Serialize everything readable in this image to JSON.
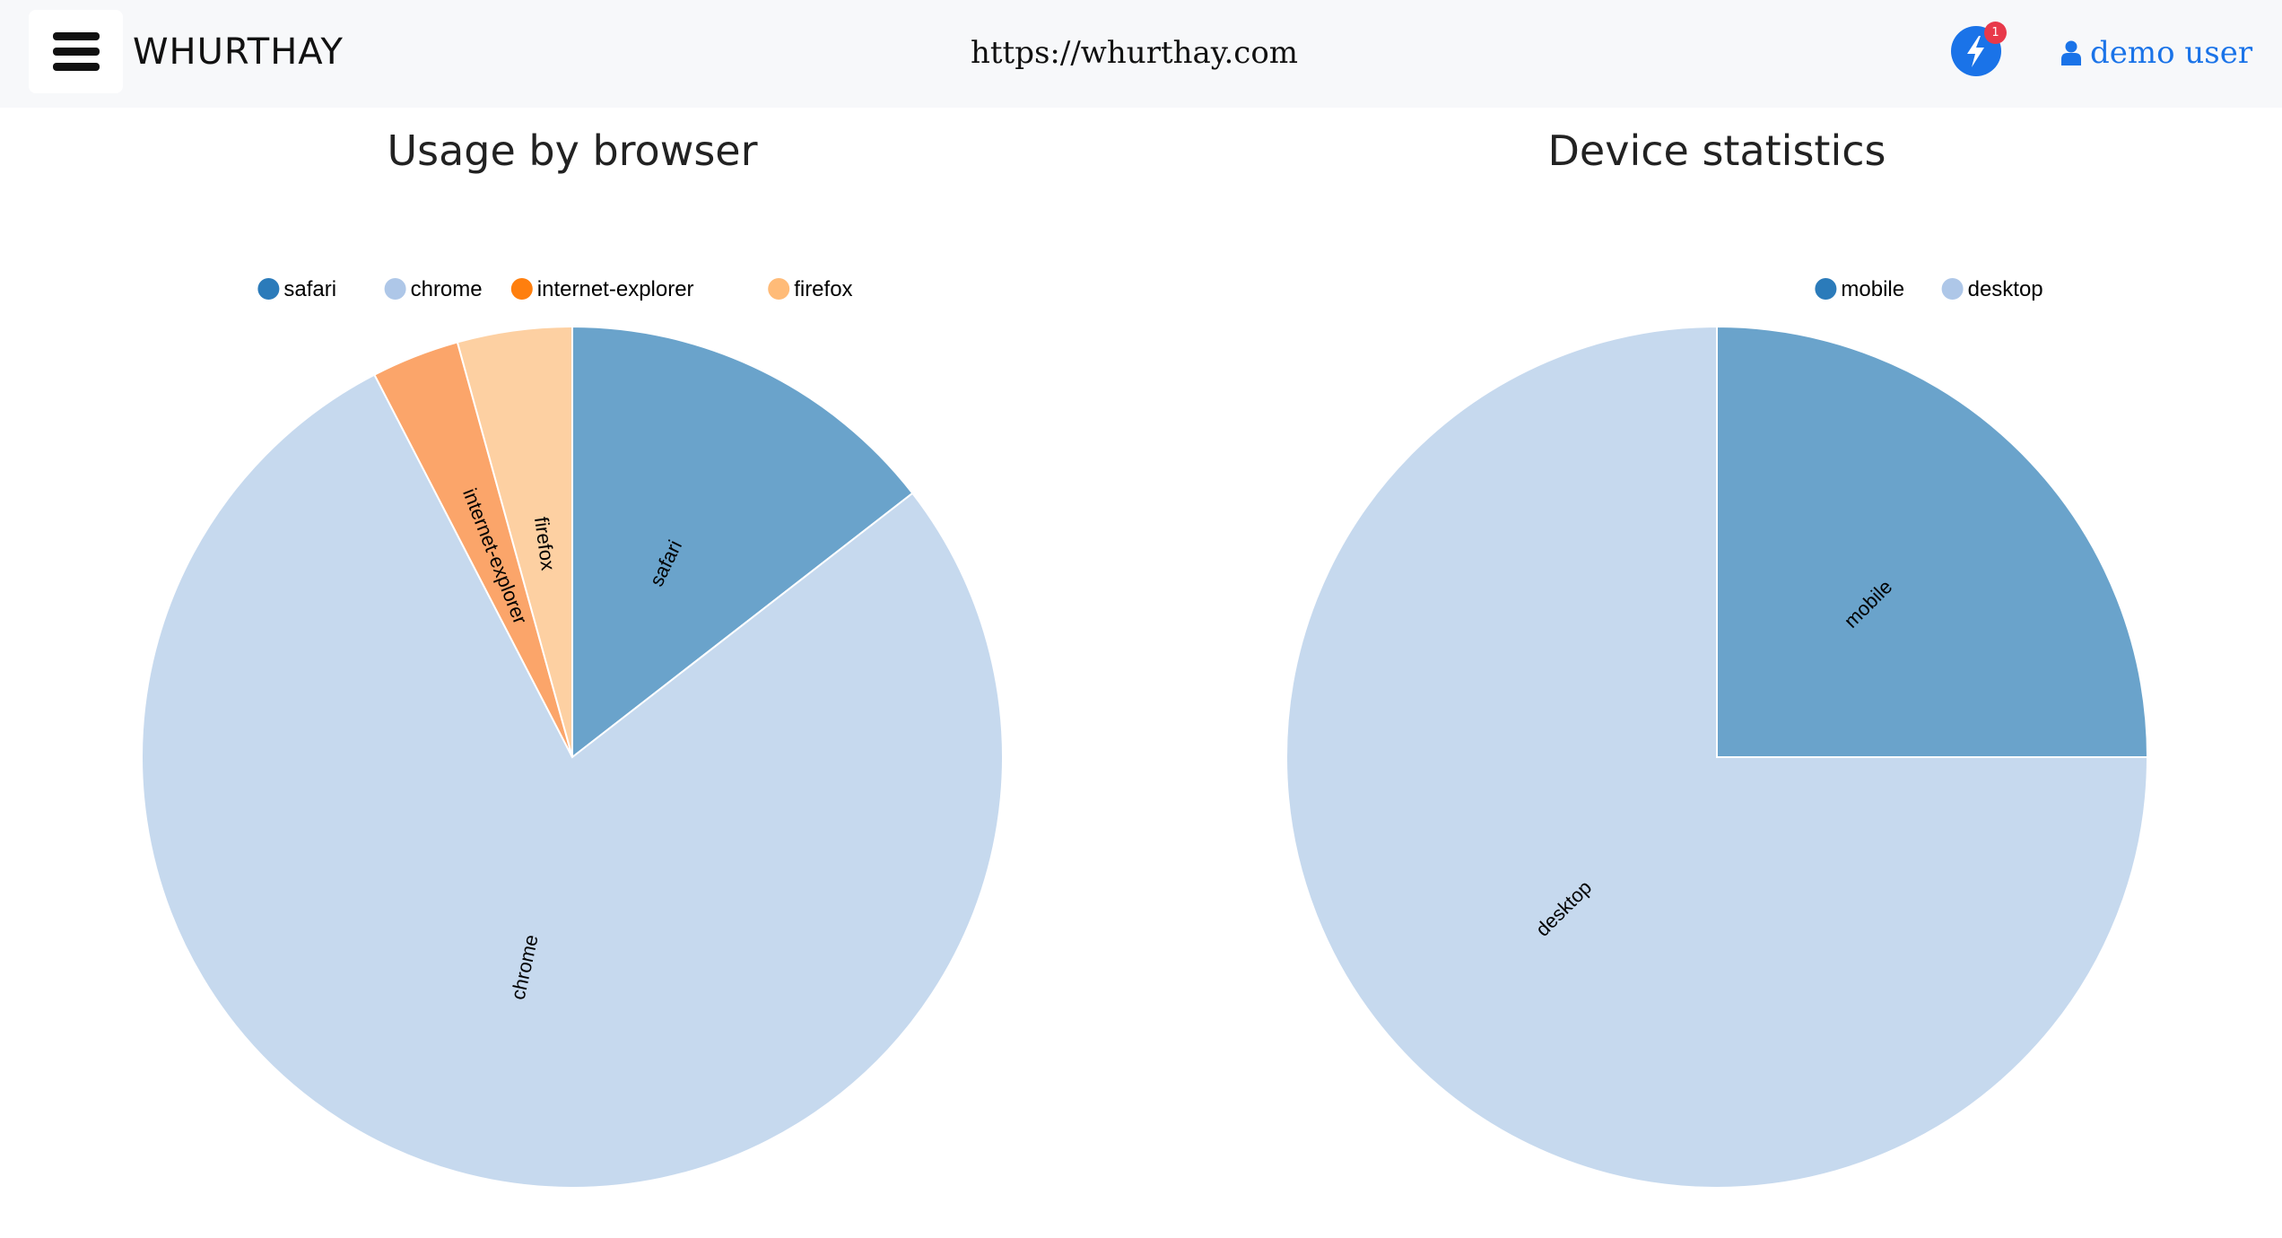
{
  "header": {
    "brand": "WHURTHAY",
    "url": "https://whurthay.com",
    "notification_count": "1",
    "user_label": "demo user",
    "accent": "#1a73e8",
    "icons": {
      "menu": "hamburger-icon",
      "notification": "lightning-bolt-icon",
      "user": "user-icon"
    }
  },
  "chart_data": [
    {
      "type": "pie",
      "title": "Usage by browser",
      "categories": [
        "safari",
        "chrome",
        "internet-explorer",
        "firefox"
      ],
      "values": [
        14.5,
        77.9,
        3.3,
        4.3
      ],
      "unit": "%",
      "colors": [
        "#6aa3cb",
        "#c6d9ee",
        "#fba56a",
        "#fdd0a2"
      ],
      "legend_colors": [
        "#2b7bba",
        "#aec7e8",
        "#ff7f0e",
        "#ffbb78"
      ],
      "legend": "top-center",
      "start_angle": "12 o'clock, clockwise"
    },
    {
      "type": "pie",
      "title": "Device statistics",
      "categories": [
        "mobile",
        "desktop"
      ],
      "values": [
        25,
        75
      ],
      "unit": "%",
      "colors": [
        "#6aa3cb",
        "#c6d9ee"
      ],
      "legend_colors": [
        "#2b7bba",
        "#aec7e8"
      ],
      "legend": "top-right",
      "start_angle": "12 o'clock, clockwise"
    }
  ]
}
